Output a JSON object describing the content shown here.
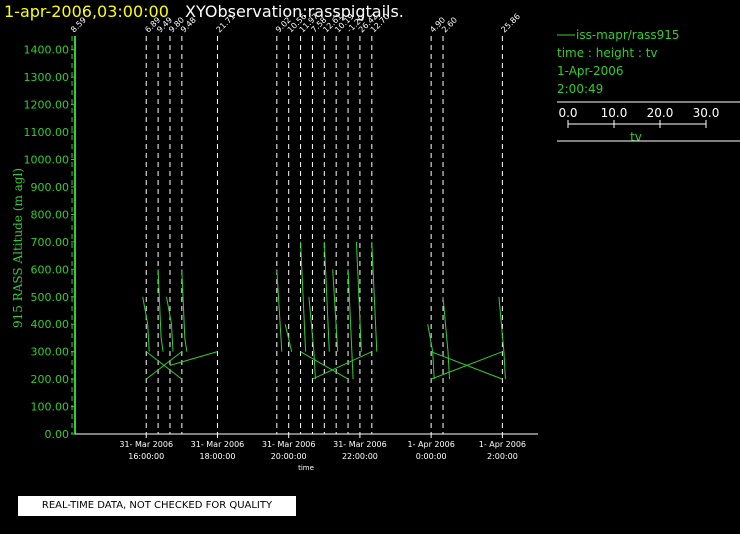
{
  "header": {
    "date_label": "1-apr-2006,03:00:00",
    "title": "XYObservation:rasspigtails."
  },
  "legend": {
    "series_label": "iss-mapr/rass915",
    "line2": "time : height : tv",
    "line3": "1-Apr-2006",
    "line4": "2:00:49",
    "scale_ticks": [
      "0.0",
      "10.0",
      "20.0",
      "30.0"
    ],
    "scale_label": "tv"
  },
  "notice": "REAL-TIME DATA, NOT CHECKED FOR QUALITY",
  "colors": {
    "series": "#33cc33",
    "guide": "#ffffff",
    "background": "#000000"
  },
  "chart_data": {
    "type": "line",
    "ylabel": "915 RASS Altitude (m agl)",
    "xlabel": "time",
    "ylim": [
      0,
      1450
    ],
    "yticks": [
      "0.00",
      "100.00",
      "200.00",
      "300.00",
      "400.00",
      "500.00",
      "600.00",
      "700.00",
      "800.00",
      "900.00",
      "1000.00",
      "1100.00",
      "1200.00",
      "1300.00",
      "1400.00"
    ],
    "xlim_hours": [
      14.0,
      3.0
    ],
    "xticks": [
      {
        "date": "31- Mar 2006",
        "time": "16:00:00"
      },
      {
        "date": "31- Mar 2006",
        "time": "18:00:00"
      },
      {
        "date": "31- Mar 2006",
        "time": "20:00:00"
      },
      {
        "date": "31- Mar 2006",
        "time": "22:00:00"
      },
      {
        "date": "1- Apr 2006",
        "time": "0:00:00"
      },
      {
        "date": "1- Apr 2006",
        "time": "2:00:00"
      }
    ],
    "profiles": [
      {
        "t": "13:55",
        "label": "8.59",
        "points": []
      },
      {
        "t": "16:00",
        "label": "6.89",
        "points": [
          [
            500,
            200
          ],
          [
            400,
            300
          ],
          [
            300,
            330
          ]
        ]
      },
      {
        "t": "16:20",
        "label": "9.49",
        "points": [
          [
            600,
            270
          ],
          [
            350,
            330
          ],
          [
            300,
            370
          ]
        ]
      },
      {
        "t": "16:40",
        "label": "9.80",
        "points": [
          [
            500,
            200
          ],
          [
            400,
            300
          ],
          [
            300,
            330
          ]
        ]
      },
      {
        "t": "17:00",
        "label": "9.48",
        "points": [
          [
            600,
            270
          ],
          [
            350,
            330
          ],
          [
            300,
            370
          ]
        ]
      },
      {
        "t": "18:00",
        "label": "21.71",
        "points": [
          [
            300,
            200
          ]
        ]
      },
      {
        "t": "19:40",
        "label": "9.02",
        "points": [
          [
            600,
            270
          ],
          [
            300,
            370
          ]
        ]
      },
      {
        "t": "20:00",
        "label": "10.56",
        "points": [
          [
            400,
            200
          ],
          [
            300,
            330
          ]
        ]
      },
      {
        "t": "20:20",
        "label": "11.97",
        "points": [
          [
            700,
            270
          ],
          [
            300,
            370
          ]
        ]
      },
      {
        "t": "20:40",
        "label": "7.58",
        "points": [
          [
            500,
            200
          ],
          [
            300,
            300
          ],
          [
            200,
            330
          ]
        ]
      },
      {
        "t": "21:00",
        "label": "12.61",
        "points": [
          [
            700,
            270
          ],
          [
            300,
            370
          ]
        ]
      },
      {
        "t": "21:20",
        "label": "10.19",
        "points": [
          [
            600,
            200
          ],
          [
            300,
            300
          ]
        ]
      },
      {
        "t": "21:40",
        "label": "-1.20",
        "points": [
          [
            600,
            270
          ],
          [
            200,
            370
          ]
        ]
      },
      {
        "t": "22:00",
        "label": "26.42",
        "points": [
          [
            700,
            200
          ],
          [
            300,
            300
          ]
        ]
      },
      {
        "t": "22:20",
        "label": "12.70",
        "points": [
          [
            700,
            270
          ],
          [
            300,
            370
          ]
        ]
      },
      {
        "t": "0:00",
        "label": "4.90",
        "points": [
          [
            400,
            200
          ],
          [
            300,
            300
          ],
          [
            200,
            330
          ]
        ]
      },
      {
        "t": "0:20",
        "label": "2.60",
        "points": [
          [
            500,
            270
          ],
          [
            300,
            370
          ],
          [
            200,
            400
          ]
        ]
      },
      {
        "t": "2:00",
        "label": "25.86",
        "points": [
          [
            500,
            200
          ],
          [
            300,
            300
          ],
          [
            200,
            330
          ]
        ]
      }
    ]
  }
}
